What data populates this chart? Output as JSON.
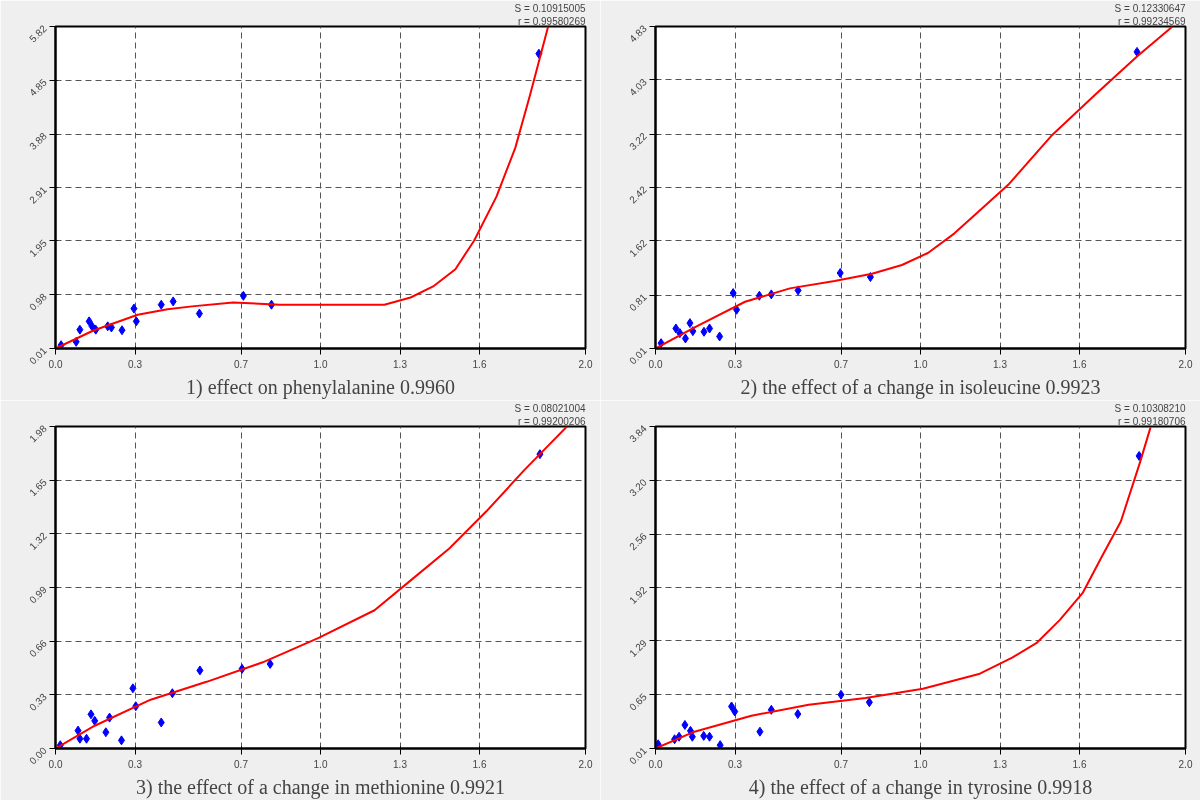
{
  "chart_data": [
    {
      "type": "scatter",
      "xlabel": "1) effect on phenylalanine 0.9960",
      "annotations": [
        "S = 0.10915005",
        "r = 0.99580269"
      ],
      "xlim": [
        0,
        2.0
      ],
      "ylim": [
        0.01,
        5.82
      ],
      "xticks": [
        {
          "value": 0,
          "label": "0.0"
        },
        0.3,
        0.7,
        {
          "value": 1.0,
          "label": "1.0"
        },
        1.3,
        1.6,
        {
          "value": 2.0,
          "label": "2.0"
        }
      ],
      "yticks": [
        0.01,
        0.98,
        1.95,
        2.91,
        3.88,
        4.85,
        5.82
      ],
      "grid": true,
      "series": [
        {
          "marker": "diamond",
          "color": "#0000ff",
          "x": [
            0.021,
            0.078,
            0.092,
            0.127,
            0.138,
            0.152,
            0.197,
            0.211,
            0.251,
            0.296,
            0.305,
            0.399,
            0.444,
            0.543,
            0.709,
            0.815,
            1.824
          ],
          "values": [
            0.07,
            0.13,
            0.35,
            0.5,
            0.41,
            0.35,
            0.41,
            0.39,
            0.34,
            0.73,
            0.5,
            0.8,
            0.86,
            0.64,
            0.96,
            0.8,
            5.33
          ]
        },
        {
          "type": "line",
          "color": "#ff0000",
          "x": [
            0,
            0.141,
            0.31,
            0.423,
            0.515,
            0.67,
            0.846,
            1.241,
            1.34,
            1.425,
            1.509,
            1.58,
            1.664,
            1.735,
            1.791,
            1.859
          ],
          "values": [
            0.01,
            0.33,
            0.62,
            0.72,
            0.77,
            0.84,
            0.8,
            0.8,
            0.93,
            1.13,
            1.44,
            1.96,
            2.75,
            3.63,
            4.59,
            5.82
          ]
        }
      ]
    },
    {
      "type": "scatter",
      "xlabel": "2) the effect of a change in isoleucine 0.9923",
      "annotations": [
        "S = 0.12330647",
        "r = 0.99234569"
      ],
      "xlim": [
        0,
        2.0
      ],
      "ylim": [
        0.01,
        4.83
      ],
      "xticks": [
        {
          "value": 0,
          "label": "0.0"
        },
        0.3,
        0.7,
        {
          "value": 1.0,
          "label": "1.0"
        },
        1.3,
        1.6,
        {
          "value": 2.0,
          "label": "2.0"
        }
      ],
      "yticks": [
        0.01,
        0.81,
        1.62,
        2.42,
        3.22,
        4.03,
        4.83
      ],
      "grid": true,
      "series": [
        {
          "marker": "diamond",
          "color": "#0000ff",
          "x": [
            0.021,
            0.077,
            0.092,
            0.113,
            0.13,
            0.141,
            0.183,
            0.204,
            0.242,
            0.293,
            0.306,
            0.392,
            0.437,
            0.538,
            0.697,
            0.811,
            1.817
          ],
          "values": [
            0.09,
            0.31,
            0.24,
            0.16,
            0.39,
            0.27,
            0.26,
            0.31,
            0.19,
            0.84,
            0.59,
            0.8,
            0.82,
            0.88,
            1.14,
            1.08,
            4.45
          ]
        },
        {
          "type": "line",
          "color": "#ff0000",
          "x": [
            0,
            0.155,
            0.338,
            0.507,
            0.676,
            0.817,
            0.93,
            1.028,
            1.127,
            1.211,
            1.331,
            1.493,
            1.662,
            1.817,
            1.951
          ],
          "values": [
            0.01,
            0.34,
            0.71,
            0.91,
            1.02,
            1.13,
            1.26,
            1.44,
            1.73,
            2.03,
            2.46,
            3.19,
            3.82,
            4.38,
            4.83
          ]
        }
      ]
    },
    {
      "type": "scatter",
      "xlabel": "3) the effect of a change in methionine 0.9921",
      "annotations": [
        "S = 0.08021004",
        "r = 0.99200206"
      ],
      "xlim": [
        0,
        2.0
      ],
      "ylim": [
        0,
        1.98
      ],
      "xticks": [
        {
          "value": 0,
          "label": "0.0"
        },
        0.3,
        0.7,
        {
          "value": 1.0,
          "label": "1.0"
        },
        1.3,
        1.6,
        {
          "value": 2.0,
          "label": "2.0"
        }
      ],
      "yticks": [
        {
          "value": 0,
          "label": "0.00"
        },
        0.33,
        0.66,
        0.99,
        1.32,
        1.65,
        1.98
      ],
      "grid": true,
      "series": [
        {
          "marker": "diamond",
          "color": "#0000ff",
          "x": [
            0.018,
            0.085,
            0.092,
            0.117,
            0.134,
            0.148,
            0.19,
            0.204,
            0.249,
            0.292,
            0.303,
            0.399,
            0.441,
            0.545,
            0.704,
            0.81,
            1.828
          ],
          "values": [
            0.02,
            0.11,
            0.06,
            0.06,
            0.21,
            0.17,
            0.1,
            0.19,
            0.05,
            0.37,
            0.26,
            0.16,
            0.34,
            0.48,
            0.49,
            0.52,
            1.81
          ]
        },
        {
          "type": "line",
          "color": "#ff0000",
          "x": [
            0,
            0.148,
            0.359,
            0.57,
            0.782,
            0.993,
            1.204,
            1.345,
            1.486,
            1.627,
            1.768,
            1.93
          ],
          "values": [
            0,
            0.14,
            0.3,
            0.41,
            0.53,
            0.68,
            0.85,
            1.04,
            1.23,
            1.46,
            1.71,
            1.98
          ]
        }
      ]
    },
    {
      "type": "scatter",
      "xlabel": "4) the effect of a change in tyrosine 0.9918",
      "annotations": [
        "S = 0.10308210",
        "r = 0.99180706"
      ],
      "xlim": [
        0,
        2.0
      ],
      "ylim": [
        0.01,
        3.84
      ],
      "xticks": [
        {
          "value": 0,
          "label": "0.0"
        },
        0.3,
        0.7,
        {
          "value": 1.0,
          "label": "1.0"
        },
        1.3,
        1.6,
        {
          "value": 2.0,
          "label": "2.0"
        }
      ],
      "yticks": [
        0.01,
        0.65,
        1.29,
        1.92,
        2.56,
        {
          "value": 3.2,
          "label": "3.20"
        },
        3.84
      ],
      "grid": true,
      "series": [
        {
          "marker": "diamond",
          "color": "#0000ff",
          "x": [
            0.01,
            0.072,
            0.089,
            0.111,
            0.132,
            0.139,
            0.182,
            0.204,
            0.244,
            0.287,
            0.299,
            0.394,
            0.437,
            0.537,
            0.7,
            0.807,
            1.825
          ],
          "values": [
            0.06,
            0.12,
            0.15,
            0.29,
            0.22,
            0.15,
            0.16,
            0.15,
            0.05,
            0.51,
            0.45,
            0.21,
            0.47,
            0.42,
            0.65,
            0.56,
            3.49
          ]
        },
        {
          "type": "line",
          "color": "#ff0000",
          "x": [
            0,
            0.147,
            0.362,
            0.578,
            0.793,
            1.009,
            1.224,
            1.346,
            1.44,
            1.526,
            1.612,
            1.684,
            1.756,
            1.828,
            1.868
          ],
          "values": [
            0.01,
            0.21,
            0.4,
            0.53,
            0.61,
            0.72,
            0.9,
            1.09,
            1.27,
            1.54,
            1.86,
            2.29,
            2.71,
            3.41,
            3.83
          ]
        }
      ]
    }
  ]
}
